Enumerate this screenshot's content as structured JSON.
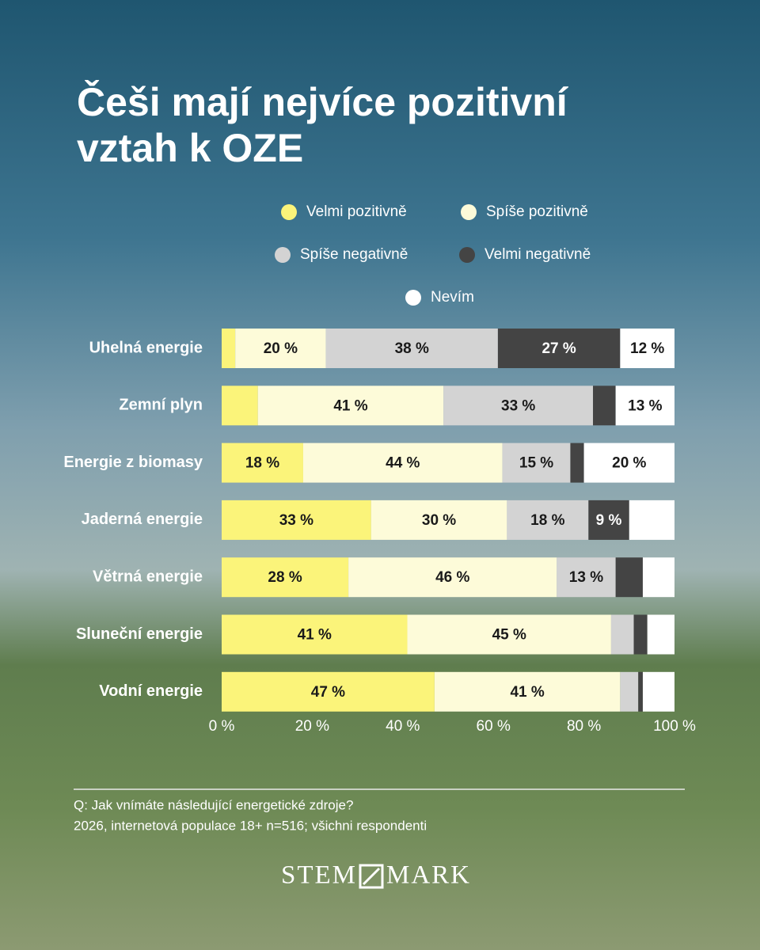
{
  "chart_data": {
    "type": "stacked-bar-horizontal",
    "title": "Češi mají nejvíce pozitivní vztah k OZE",
    "categories": [
      "Uhelná energie",
      "Zemní plyn",
      "Energie z biomasy",
      "Jaderná energie",
      "Větrná energie",
      "Sluneční energie",
      "Vodní energie"
    ],
    "series": [
      {
        "name": "Velmi pozitivně",
        "color": "#fbf47a",
        "values": [
          3,
          8,
          18,
          33,
          28,
          41,
          47
        ],
        "value_labels": [
          null,
          null,
          "18 %",
          "33 %",
          "28 %",
          "41 %",
          "47 %"
        ]
      },
      {
        "name": "Spíše pozitivně",
        "color": "#fdfbd9",
        "values": [
          20,
          41,
          44,
          30,
          46,
          45,
          41
        ],
        "value_labels": [
          "20 %",
          "41 %",
          "44 %",
          "30 %",
          "46 %",
          "45 %",
          "41 %"
        ]
      },
      {
        "name": "Spíše negativně",
        "color": "#d3d3d3",
        "values": [
          38,
          33,
          15,
          18,
          13,
          5,
          4
        ],
        "value_labels": [
          "38 %",
          "33 %",
          "15 %",
          "18 %",
          "13 %",
          null,
          null
        ]
      },
      {
        "name": "Velmi negativně",
        "color": "#444444",
        "values": [
          27,
          5,
          3,
          9,
          6,
          3,
          1
        ],
        "value_labels": [
          "27 %",
          null,
          null,
          "9 %",
          null,
          null,
          null
        ]
      },
      {
        "name": "Nevím",
        "color": "#ffffff",
        "values": [
          12,
          13,
          20,
          10,
          7,
          6,
          7
        ],
        "value_labels": [
          "12 %",
          "13 %",
          "20 %",
          null,
          null,
          null,
          null
        ]
      }
    ],
    "xlim": [
      0,
      100
    ],
    "xticks": [
      {
        "value": 0,
        "label": "0 %"
      },
      {
        "value": 20,
        "label": "20 %"
      },
      {
        "value": 40,
        "label": "40 %"
      },
      {
        "value": 60,
        "label": "60 %"
      },
      {
        "value": 80,
        "label": "80 %"
      },
      {
        "value": 100,
        "label": "100 %"
      }
    ]
  },
  "footer": {
    "question": "Q: Jak vnímáte následující energetické zdroje?",
    "source": "2026, internetová populace 18+ n=516; všichni respondenti",
    "logo_left": "STEM",
    "logo_right": "MARK"
  }
}
